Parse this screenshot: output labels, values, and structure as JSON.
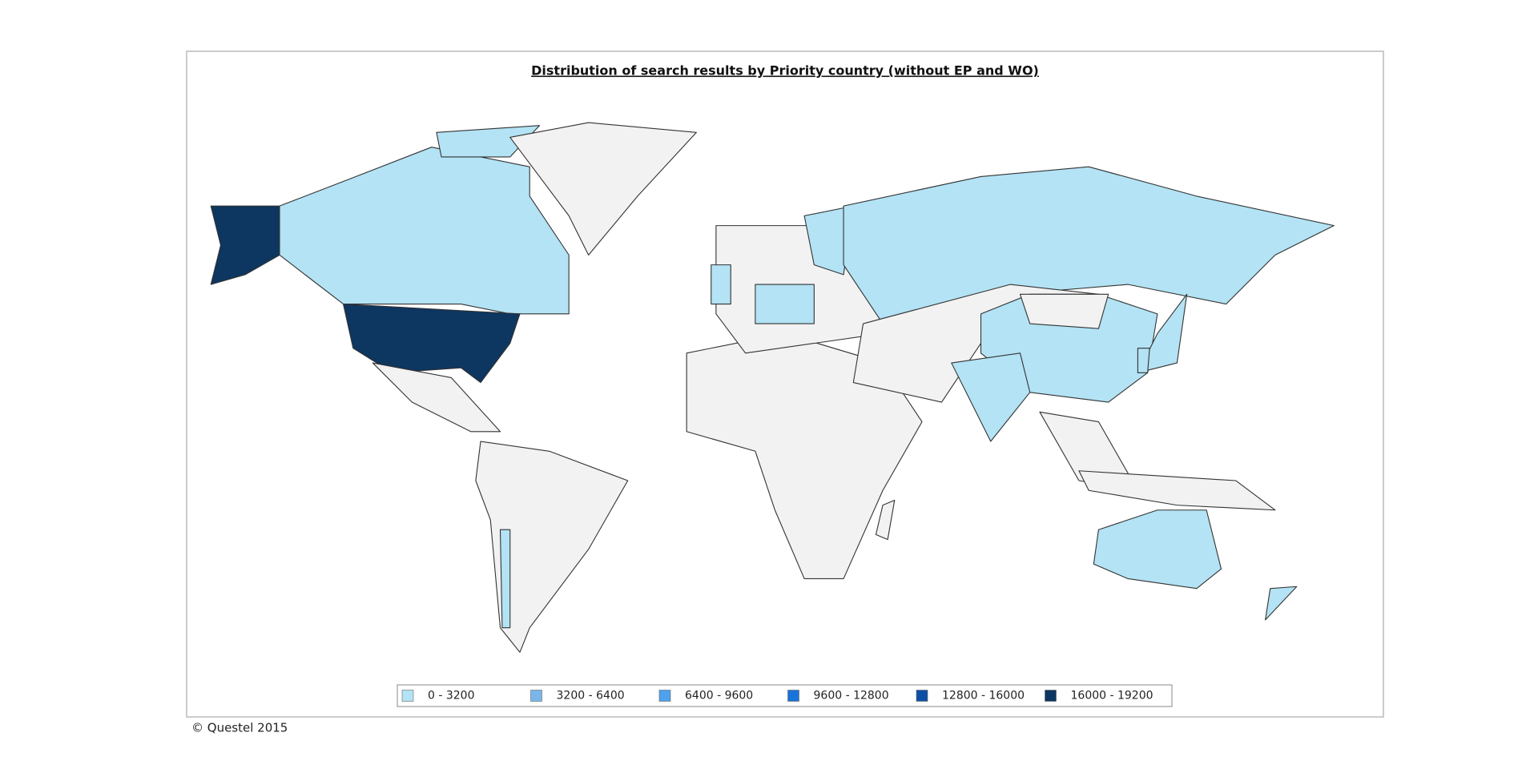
{
  "title": "Distribution of search results by Priority country (without EP and WO)",
  "legend": [
    {
      "label": "0 - 3200",
      "color": "#b3e3f4"
    },
    {
      "label": "3200 - 6400",
      "color": "#7ab6ea"
    },
    {
      "label": "6400 - 9600",
      "color": "#4ea1ec"
    },
    {
      "label": "9600 - 12800",
      "color": "#1a73d9"
    },
    {
      "label": "12800 - 16000",
      "color": "#0e4fa6"
    },
    {
      "label": "16000 - 19200",
      "color": "#0d3660"
    }
  ],
  "copyright": "© Questel 2015"
}
